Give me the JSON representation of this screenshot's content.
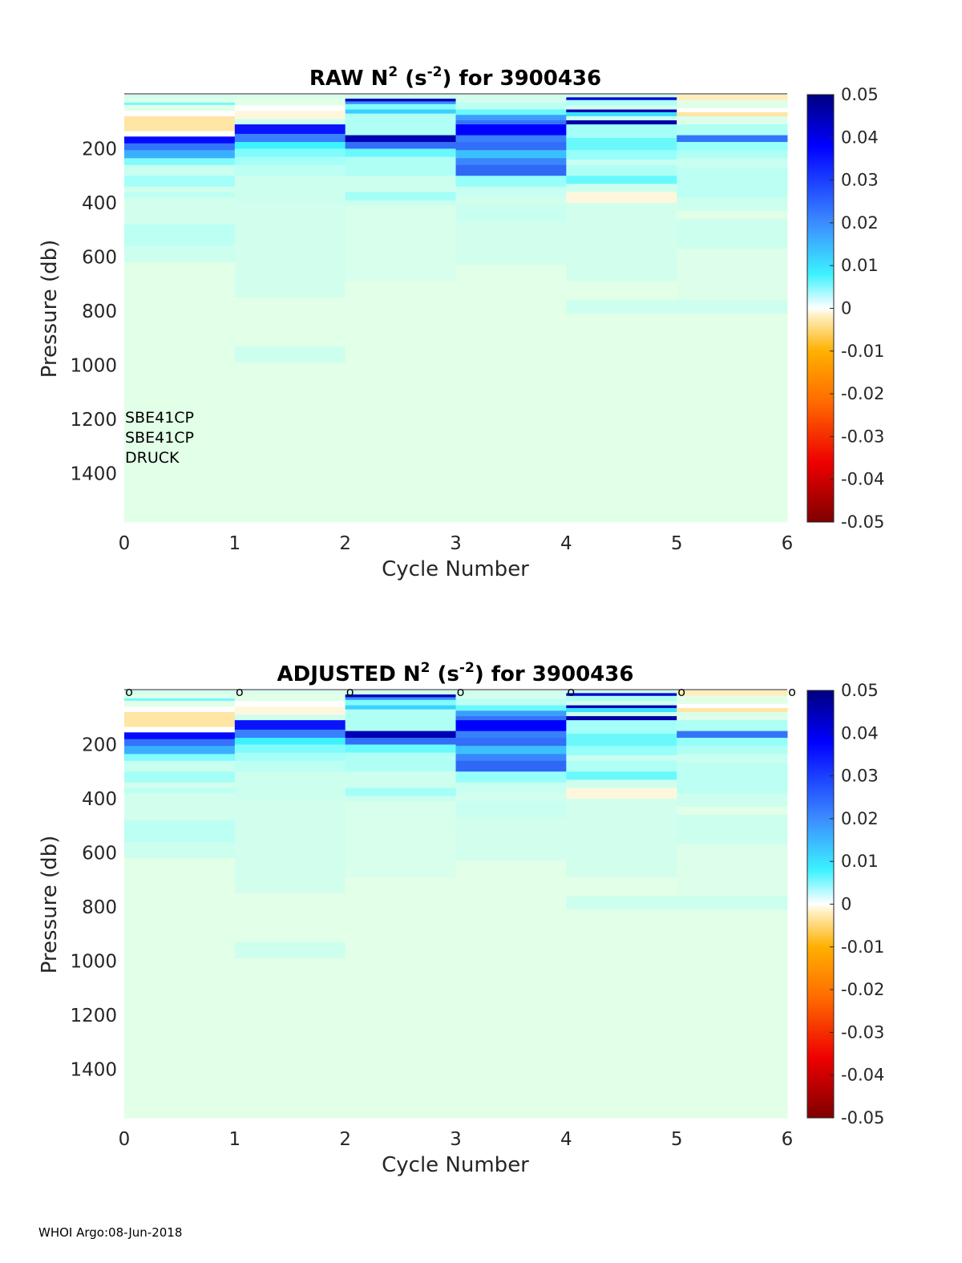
{
  "footer": "WHOI Argo:08-Jun-2018",
  "chart_data": [
    {
      "type": "heatmap",
      "id": "raw",
      "title_prefix": "RAW N",
      "title_sup1": "2",
      "title_mid": " (s",
      "title_sup2": "-2",
      "title_suffix": ") for 3900436",
      "xlabel": "Cycle Number",
      "ylabel": "Pressure (db)",
      "xlim": [
        0,
        6
      ],
      "ylim": [
        1580,
        0
      ],
      "xticks": [
        "0",
        "1",
        "2",
        "3",
        "4",
        "5",
        "6"
      ],
      "yticks": [
        "200",
        "400",
        "600",
        "800",
        "1000",
        "1200",
        "1400"
      ],
      "colorbar": {
        "min": -0.05,
        "max": 0.05,
        "ticks": [
          "0.05",
          "0.04",
          "0.03",
          "0.02",
          "0.01",
          "0",
          "-0.01",
          "-0.02",
          "-0.03",
          "-0.04",
          "-0.05"
        ]
      },
      "annotations": [
        "SBE41CP",
        "SBE41CP",
        "DRUCK"
      ],
      "cycle_markers": []
    },
    {
      "type": "heatmap",
      "id": "adjusted",
      "title_prefix": "ADJUSTED N",
      "title_sup1": "2",
      "title_mid": " (s",
      "title_sup2": "-2",
      "title_suffix": ") for 3900436",
      "xlabel": "Cycle Number",
      "ylabel": "Pressure (db)",
      "xlim": [
        0,
        6
      ],
      "ylim": [
        1580,
        0
      ],
      "xticks": [
        "0",
        "1",
        "2",
        "3",
        "4",
        "5",
        "6"
      ],
      "yticks": [
        "200",
        "400",
        "600",
        "800",
        "1000",
        "1200",
        "1400"
      ],
      "colorbar": {
        "min": -0.05,
        "max": 0.05,
        "ticks": [
          "0.05",
          "0.04",
          "0.03",
          "0.02",
          "0.01",
          "0",
          "-0.01",
          "-0.02",
          "-0.03",
          "-0.04",
          "-0.05"
        ]
      },
      "annotations": [],
      "cycle_markers": [
        "o",
        "o",
        "o",
        "o",
        "o",
        "o",
        "o"
      ]
    }
  ],
  "field_layers": [
    [
      [
        0,
        15,
        0.004
      ],
      [
        15,
        25,
        0.001
      ],
      [
        25,
        30,
        0.004
      ],
      [
        30,
        38,
        0.012
      ],
      [
        38,
        60,
        0.001
      ],
      [
        60,
        80,
        0.0
      ],
      [
        80,
        135,
        -0.003
      ],
      [
        135,
        155,
        0.0
      ],
      [
        155,
        180,
        0.037
      ],
      [
        180,
        205,
        0.024
      ],
      [
        205,
        235,
        0.018
      ],
      [
        235,
        260,
        0.011
      ],
      [
        260,
        300,
        0.006
      ],
      [
        300,
        340,
        0.009
      ],
      [
        340,
        360,
        0.004
      ],
      [
        360,
        380,
        0.007
      ],
      [
        380,
        480,
        0.004
      ],
      [
        480,
        560,
        0.007
      ],
      [
        560,
        620,
        0.005
      ],
      [
        620,
        1580,
        0.001
      ]
    ],
    [
      [
        0,
        15,
        0.003
      ],
      [
        15,
        40,
        0.001
      ],
      [
        40,
        60,
        0.0
      ],
      [
        60,
        90,
        -0.001
      ],
      [
        90,
        110,
        0.005
      ],
      [
        110,
        145,
        0.036
      ],
      [
        145,
        175,
        0.022
      ],
      [
        175,
        200,
        0.014
      ],
      [
        200,
        230,
        0.011
      ],
      [
        230,
        260,
        0.009
      ],
      [
        260,
        300,
        0.007
      ],
      [
        300,
        400,
        0.005
      ],
      [
        400,
        750,
        0.004
      ],
      [
        750,
        930,
        0.001
      ],
      [
        930,
        990,
        0.005
      ],
      [
        990,
        1580,
        0.001
      ]
    ],
    [
      [
        0,
        15,
        0.005
      ],
      [
        15,
        25,
        0.045
      ],
      [
        25,
        35,
        0.02
      ],
      [
        35,
        55,
        0.011
      ],
      [
        55,
        70,
        0.016
      ],
      [
        70,
        150,
        0.008
      ],
      [
        150,
        175,
        0.045
      ],
      [
        175,
        200,
        0.025
      ],
      [
        200,
        230,
        0.012
      ],
      [
        230,
        300,
        0.008
      ],
      [
        300,
        360,
        0.005
      ],
      [
        360,
        390,
        0.009
      ],
      [
        390,
        410,
        0.006
      ],
      [
        410,
        690,
        0.003
      ],
      [
        690,
        1580,
        0.001
      ]
    ],
    [
      [
        0,
        30,
        0.004
      ],
      [
        30,
        55,
        0.007
      ],
      [
        55,
        75,
        0.012
      ],
      [
        75,
        95,
        0.019
      ],
      [
        95,
        110,
        0.024
      ],
      [
        110,
        150,
        0.038
      ],
      [
        150,
        175,
        0.022
      ],
      [
        175,
        205,
        0.025
      ],
      [
        205,
        235,
        0.017
      ],
      [
        235,
        260,
        0.021
      ],
      [
        260,
        300,
        0.026
      ],
      [
        300,
        340,
        0.01
      ],
      [
        340,
        380,
        0.006
      ],
      [
        380,
        410,
        0.004
      ],
      [
        410,
        470,
        0.006
      ],
      [
        470,
        630,
        0.004
      ],
      [
        630,
        1580,
        0.001
      ]
    ],
    [
      [
        0,
        10,
        0.006
      ],
      [
        10,
        20,
        0.042
      ],
      [
        20,
        40,
        0.008
      ],
      [
        40,
        55,
        0.004
      ],
      [
        55,
        65,
        0.045
      ],
      [
        65,
        80,
        0.015
      ],
      [
        80,
        95,
        0.006
      ],
      [
        95,
        110,
        0.046
      ],
      [
        110,
        160,
        0.009
      ],
      [
        160,
        205,
        0.012
      ],
      [
        205,
        240,
        0.01
      ],
      [
        240,
        260,
        0.006
      ],
      [
        260,
        300,
        0.008
      ],
      [
        300,
        330,
        0.012
      ],
      [
        330,
        360,
        0.005
      ],
      [
        360,
        400,
        -0.001
      ],
      [
        400,
        690,
        0.004
      ],
      [
        690,
        760,
        0.001
      ],
      [
        760,
        810,
        0.005
      ],
      [
        810,
        1580,
        0.001
      ]
    ],
    [
      [
        0,
        20,
        -0.002
      ],
      [
        20,
        50,
        0.001
      ],
      [
        50,
        65,
        0.0
      ],
      [
        65,
        80,
        -0.003
      ],
      [
        80,
        90,
        0.003
      ],
      [
        90,
        110,
        0.002
      ],
      [
        110,
        150,
        0.008
      ],
      [
        150,
        175,
        0.024
      ],
      [
        175,
        205,
        0.01
      ],
      [
        205,
        235,
        0.008
      ],
      [
        235,
        270,
        0.006
      ],
      [
        270,
        380,
        0.007
      ],
      [
        380,
        430,
        0.005
      ],
      [
        430,
        460,
        0.001
      ],
      [
        460,
        570,
        0.005
      ],
      [
        570,
        760,
        0.002
      ],
      [
        760,
        810,
        0.005
      ],
      [
        810,
        1580,
        0.001
      ]
    ]
  ]
}
